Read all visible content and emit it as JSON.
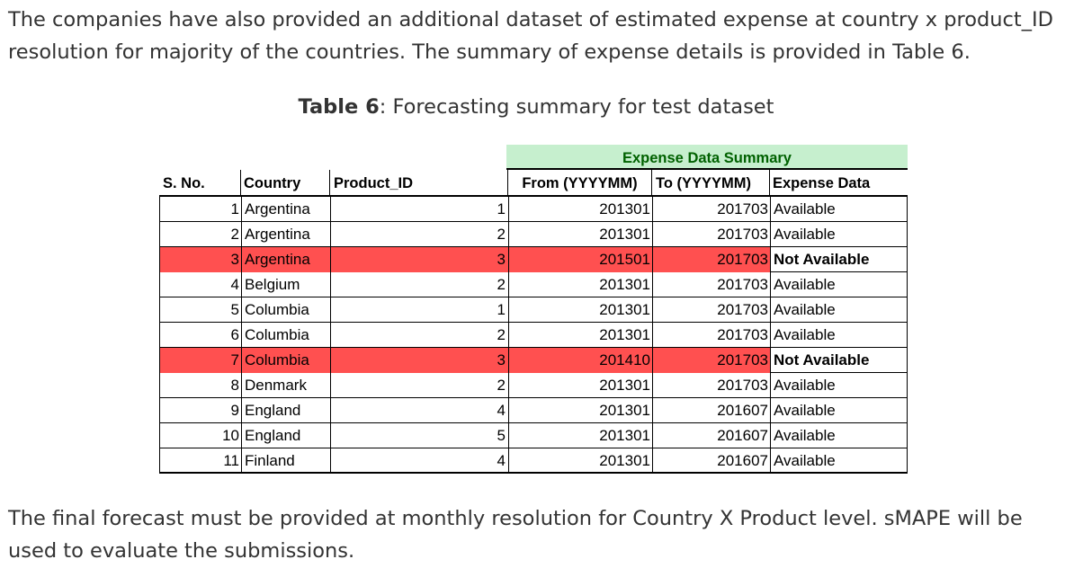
{
  "intro_text": "The companies have also provided an additional dataset of estimated expense at country x product_ID resolution for majority of the countries. The summary of expense details is provided in Table 6.",
  "caption": {
    "label": "Table 6",
    "text": ": Forecasting summary for test dataset"
  },
  "table": {
    "group_header": "Expense Data Summary",
    "headers": {
      "sno": "S. No.",
      "country": "Country",
      "product_id": "Product_ID",
      "from": "From (YYYYMM)",
      "to": "To (YYYYMM)",
      "expense": "Expense Data"
    },
    "highlight_color": "#ff5050",
    "group_header_color": "#c6efce",
    "rows": [
      {
        "sno": "1",
        "country": "Argentina",
        "product_id": "1",
        "from": "201301",
        "to": "201703",
        "expense": "Available",
        "highlight": false
      },
      {
        "sno": "2",
        "country": "Argentina",
        "product_id": "2",
        "from": "201301",
        "to": "201703",
        "expense": "Available",
        "highlight": false
      },
      {
        "sno": "3",
        "country": "Argentina",
        "product_id": "3",
        "from": "201501",
        "to": "201703",
        "expense": "Not Available",
        "highlight": true
      },
      {
        "sno": "4",
        "country": "Belgium",
        "product_id": "2",
        "from": "201301",
        "to": "201703",
        "expense": "Available",
        "highlight": false
      },
      {
        "sno": "5",
        "country": "Columbia",
        "product_id": "1",
        "from": "201301",
        "to": "201703",
        "expense": "Available",
        "highlight": false
      },
      {
        "sno": "6",
        "country": "Columbia",
        "product_id": "2",
        "from": "201301",
        "to": "201703",
        "expense": "Available",
        "highlight": false
      },
      {
        "sno": "7",
        "country": "Columbia",
        "product_id": "3",
        "from": "201410",
        "to": "201703",
        "expense": "Not Available",
        "highlight": true
      },
      {
        "sno": "8",
        "country": "Denmark",
        "product_id": "2",
        "from": "201301",
        "to": "201703",
        "expense": "Available",
        "highlight": false
      },
      {
        "sno": "9",
        "country": "England",
        "product_id": "4",
        "from": "201301",
        "to": "201607",
        "expense": "Available",
        "highlight": false
      },
      {
        "sno": "10",
        "country": "England",
        "product_id": "5",
        "from": "201301",
        "to": "201607",
        "expense": "Available",
        "highlight": false
      },
      {
        "sno": "11",
        "country": "Finland",
        "product_id": "4",
        "from": "201301",
        "to": "201607",
        "expense": "Available",
        "highlight": false
      }
    ]
  },
  "outro_text": "The final forecast must be provided at monthly resolution for Country X Product level. sMAPE will be used to evaluate the submissions."
}
